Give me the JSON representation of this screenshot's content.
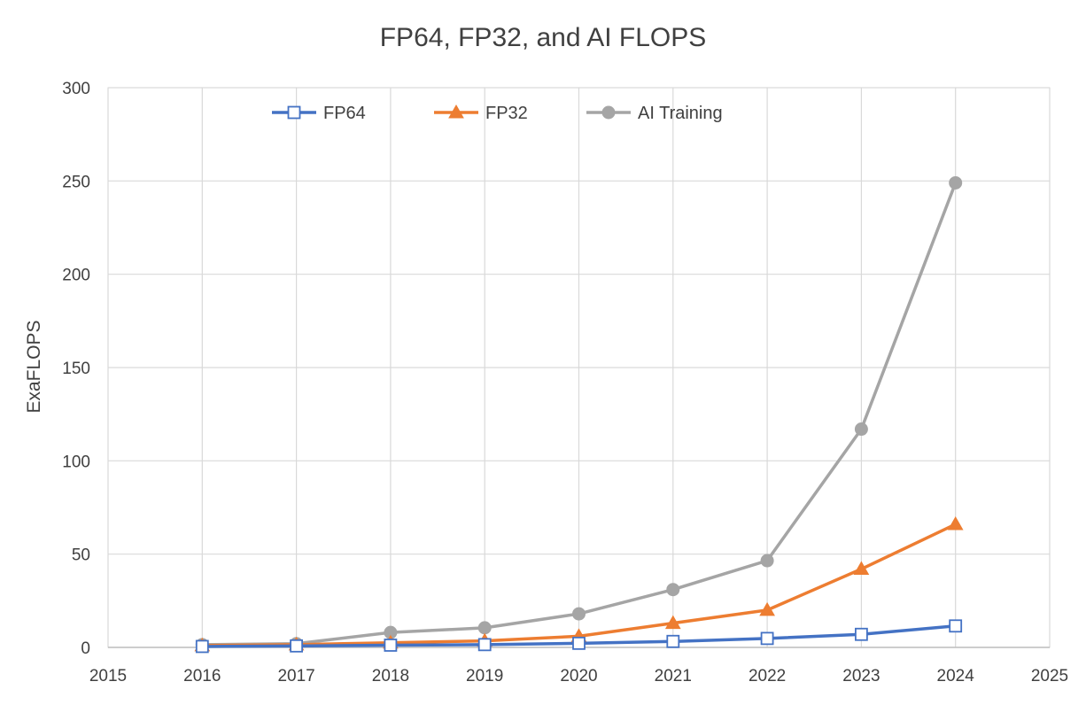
{
  "chart_data": {
    "type": "line",
    "title": "FP64, FP32, and AI FLOPS",
    "xlabel": "",
    "ylabel": "ExaFLOPS",
    "xlim": [
      2015,
      2025
    ],
    "ylim": [
      0,
      300
    ],
    "xticks": [
      2015,
      2016,
      2017,
      2018,
      2019,
      2020,
      2021,
      2022,
      2023,
      2024,
      2025
    ],
    "yticks": [
      0,
      50,
      100,
      150,
      200,
      250,
      300
    ],
    "grid": true,
    "legend_position": "top",
    "x": [
      2016,
      2017,
      2018,
      2019,
      2020,
      2021,
      2022,
      2023,
      2024
    ],
    "series": [
      {
        "name": "FP64",
        "color": "#4472C4",
        "marker": "open-square",
        "values": [
          0.5,
          0.8,
          1.2,
          1.5,
          2.2,
          3.2,
          4.8,
          7,
          11.5
        ]
      },
      {
        "name": "FP32",
        "color": "#ED7D31",
        "marker": "triangle",
        "values": [
          1,
          1.5,
          2.5,
          3.5,
          6,
          13,
          20,
          42,
          66
        ]
      },
      {
        "name": "AI Training",
        "color": "#A5A5A5",
        "marker": "circle",
        "values": [
          1.5,
          2,
          8,
          10.5,
          18,
          31,
          46.5,
          117,
          249
        ]
      }
    ]
  }
}
